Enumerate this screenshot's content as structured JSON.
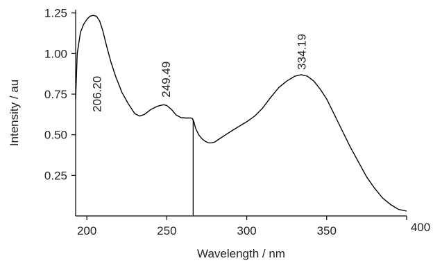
{
  "chart_data": {
    "type": "line",
    "title": "",
    "xlabel": "Wavelength / nm",
    "ylabel": "Intensity / au",
    "xlim": [
      193,
      400
    ],
    "ylim": [
      0,
      1.27
    ],
    "x_ticks": [
      {
        "value": 200,
        "label": "200"
      },
      {
        "value": 250,
        "label": "250"
      },
      {
        "value": 300,
        "label": "300"
      },
      {
        "value": 350,
        "label": "350"
      },
      {
        "value": 400,
        "label": "400"
      }
    ],
    "y_ticks": [
      {
        "value": 0.25,
        "label": "0.25"
      },
      {
        "value": 0.5,
        "label": "0.50"
      },
      {
        "value": 0.75,
        "label": "0.75"
      },
      {
        "value": 1.0,
        "label": "1.00"
      },
      {
        "value": 1.25,
        "label": "1.25"
      }
    ],
    "grid": false,
    "line_color": "#000000",
    "series": [
      {
        "x": [
          193,
          194,
          196,
          198,
          200,
          202,
          204,
          206,
          208,
          210,
          212,
          215,
          218,
          222,
          226,
          230,
          233,
          236,
          240,
          244,
          248,
          250,
          253,
          256,
          259,
          262,
          265,
          266,
          267,
          268,
          270,
          272,
          274,
          276,
          278,
          280,
          283,
          286,
          290,
          295,
          300,
          305,
          310,
          315,
          320,
          325,
          330,
          334,
          338,
          342,
          346,
          350,
          355,
          360,
          365,
          370,
          375,
          380,
          385,
          390,
          395,
          400
        ],
        "y": [
          0.72,
          1.0,
          1.13,
          1.18,
          1.21,
          1.23,
          1.235,
          1.23,
          1.2,
          1.14,
          1.06,
          0.95,
          0.86,
          0.76,
          0.69,
          0.63,
          0.615,
          0.625,
          0.655,
          0.675,
          0.685,
          0.68,
          0.655,
          0.62,
          0.605,
          0.603,
          0.603,
          0.6,
          0.58,
          0.54,
          0.5,
          0.475,
          0.46,
          0.45,
          0.45,
          0.455,
          0.475,
          0.495,
          0.52,
          0.55,
          0.58,
          0.615,
          0.665,
          0.73,
          0.79,
          0.83,
          0.86,
          0.87,
          0.86,
          0.83,
          0.78,
          0.72,
          0.62,
          0.52,
          0.42,
          0.33,
          0.24,
          0.17,
          0.11,
          0.07,
          0.04,
          0.03
        ]
      }
    ],
    "vertical_line": {
      "x": 266.5,
      "y_top": 0.59,
      "y_bottom": 0
    },
    "annotations": [
      {
        "text": "206.20",
        "x": 206.2,
        "y": 0.64
      },
      {
        "text": "249.49",
        "x": 249.5,
        "y": 0.73
      },
      {
        "text": "334.19",
        "x": 334.2,
        "y": 0.9
      }
    ]
  }
}
